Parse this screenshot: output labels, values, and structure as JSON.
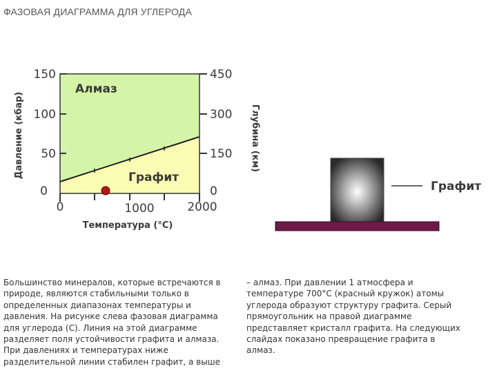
{
  "slide": {
    "title": "ФАЗОВАЯ ДИАГРАММА ДЛЯ УГЛЕРОДА"
  },
  "diagram": {
    "left_axis_label": "Давление (кбар)",
    "right_axis_label": "Глубина (км)",
    "x_axis_label": "Температура (°С)",
    "left_ticks": [
      "150",
      "100",
      "50",
      "0"
    ],
    "right_ticks": [
      "450",
      "300",
      "150",
      "0"
    ],
    "x_ticks": [
      "0",
      "1000",
      "2000"
    ],
    "region_upper": "Алмаз",
    "region_lower": "Графит",
    "colors": {
      "diamond_field": "#d4f5a8",
      "graphite_field": "#fbfcb4",
      "marker": "#b01818",
      "substrate": "#6e1a49"
    }
  },
  "crystal": {
    "label": "Графит"
  },
  "text": {
    "left_lines": [
      "Большинство минералов, которые встречаются в",
      "природе, являются стабильными только в",
      "определенных диапазонах температуры и",
      "давления. На рисунке слева фазовая диаграмма",
      "для углерода (С). Линия на этой диаграмме",
      "разделяет поля устойчивости графита и алмаза.",
      "При давлениях и температурах ниже",
      "разделительной линии стабилен графит, а выше"
    ],
    "right_lines": [
      "– алмаз. При давлении 1 атмосфера и",
      "температуре 700°С (красный кружок) атомы",
      "углерода образуют структуру графита. Серый",
      "прямоугольник на правой диаграмме",
      "представляет кристалл графита. На следующих",
      "слайдах показано превращение графита в",
      "алмаз."
    ]
  }
}
